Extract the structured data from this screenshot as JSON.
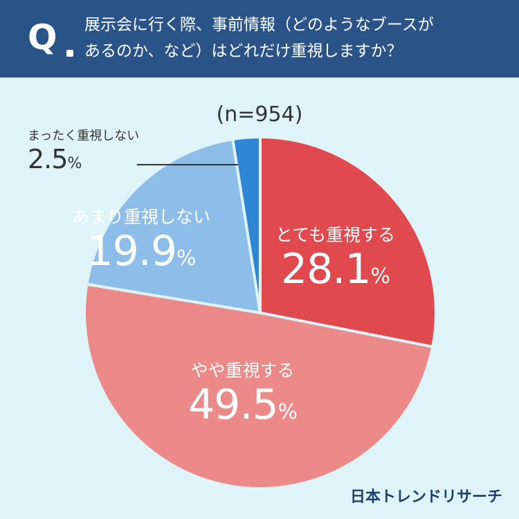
{
  "header": {
    "q_mark": "Q",
    "question_line1": "展示会に行く際、事前情報（どのようなブースが",
    "question_line2": "あるのか、など）はどれだけ重視しますか？"
  },
  "sample": "(n=954)",
  "brand": "日本トレンドリサーチ",
  "chart_data": {
    "type": "pie",
    "slices": [
      {
        "label": "とても重視する",
        "value": 28.1,
        "display": "28.1",
        "color": "#e04a4f"
      },
      {
        "label": "やや重視する",
        "value": 49.5,
        "display": "49.5",
        "color": "#ec8a89"
      },
      {
        "label": "あまり重視しない",
        "value": 19.9,
        "display": "19.9",
        "color": "#8dbde9"
      },
      {
        "label": "まったく重視しない",
        "value": 2.5,
        "display": "2.5",
        "color": "#2e86d4"
      }
    ],
    "unit": "%",
    "start_angle": "12 o'clock",
    "direction": "clockwise"
  }
}
